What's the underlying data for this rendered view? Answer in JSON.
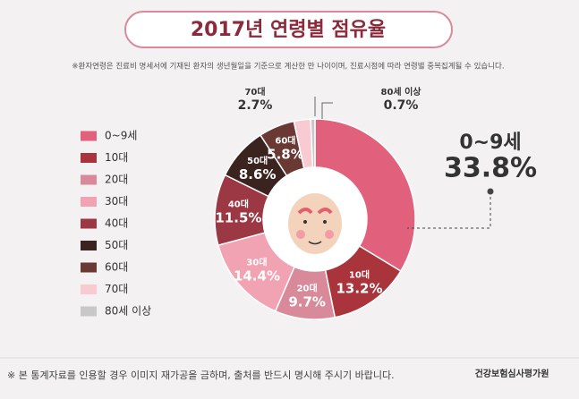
{
  "title": "2017년 연령별 점유율",
  "note": "※환자연령은 진료비 명세서에 기재된 환자의 생년월일을 기준으로 계산한 만 나이이며, 진료시점에 따라 연령별 중복집계될 수 있습니다.",
  "footer": "※ 본 통계자료를 인용할 경우 이미지 재가공을 금하며, 출처를 반드시 명시해 주시기 바랍니다.",
  "organization": "건강보험심사평가원",
  "chart_data": {
    "type": "donut",
    "categories": [
      "0~9세",
      "10대",
      "20대",
      "30대",
      "40대",
      "50대",
      "60대",
      "70대",
      "80세 이상"
    ],
    "values": [
      33.8,
      13.2,
      9.7,
      14.4,
      11.5,
      8.6,
      5.8,
      2.7,
      0.7
    ],
    "value_labels": [
      "33.8%",
      "13.2%",
      "9.7%",
      "14.4%",
      "11.5%",
      "8.6%",
      "5.8%",
      "2.7%",
      "0.7%"
    ],
    "colors": [
      "#e1607b",
      "#a9343c",
      "#d88a9a",
      "#f2a3b3",
      "#9c3843",
      "#3b2420",
      "#6a3933",
      "#f8cbd3",
      "#c8c8c8"
    ]
  }
}
